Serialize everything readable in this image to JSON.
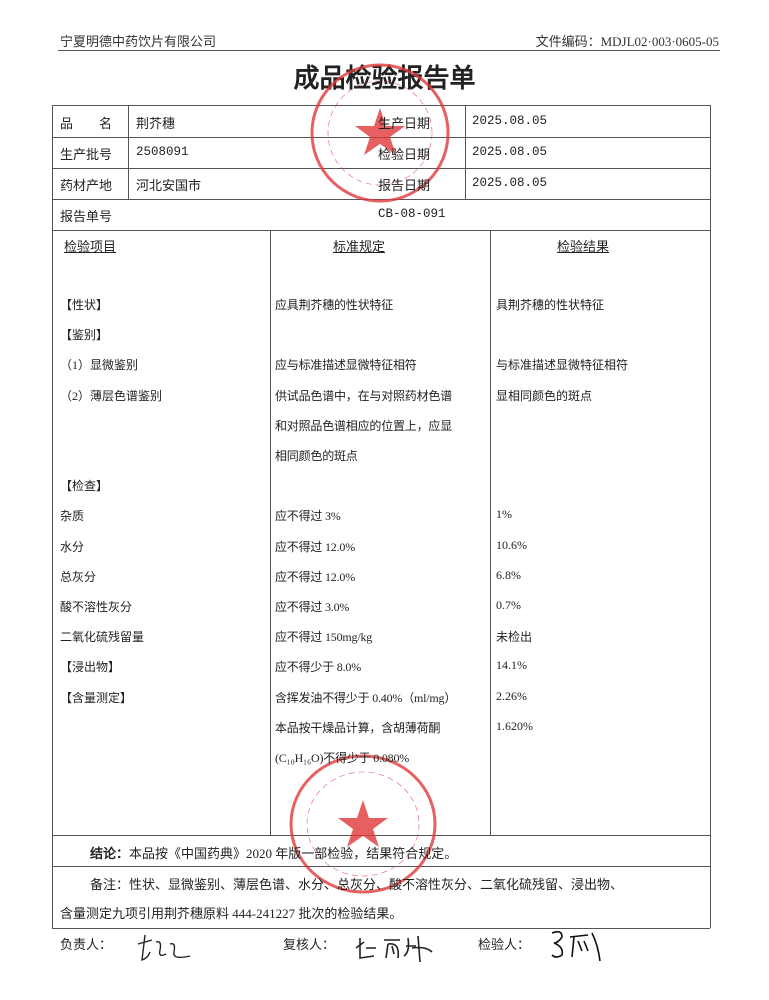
{
  "header": {
    "company": "宁夏明德中药饮片有限公司",
    "doc_code": "文件编码：MDJL02·003·0605-05"
  },
  "title": "成品检验报告单",
  "info": {
    "name_label": "品　　名",
    "name": "荆芥穗",
    "batch_label": "生产批号",
    "batch": "2508091",
    "origin_label": "药材产地",
    "origin": "河北安国市",
    "report_no_label": "报告单号",
    "report_no": "CB-08-091",
    "prod_date_label": "生产日期",
    "prod_date": "2025.08.05",
    "test_date_label": "检验日期",
    "test_date": "2025.08.05",
    "report_date_label": "报告日期",
    "report_date": "2025.08.05"
  },
  "columns": [
    "检验项目",
    "标准规定",
    "检验结果"
  ],
  "rows": [
    {
      "item": "【性状】",
      "standard": "应具荆芥穗的性状特征",
      "result": "具荆芥穗的性状特征"
    },
    {
      "item": "【鉴别】",
      "standard": "",
      "result": ""
    },
    {
      "item": "（1）显微鉴别",
      "standard": "应与标准描述显微特征相符",
      "result": "与标准描述显微特征相符"
    },
    {
      "item": "（2）薄层色谱鉴别",
      "standard": "供试品色谱中，在与对照药材色谱",
      "result": "显相同颜色的斑点"
    },
    {
      "item": "",
      "standard": "和对照品色谱相应的位置上，应显",
      "result": ""
    },
    {
      "item": "",
      "standard": "相同颜色的斑点",
      "result": ""
    },
    {
      "item": "【检查】",
      "standard": "",
      "result": ""
    },
    {
      "item": "杂质",
      "standard": "应不得过 3%",
      "result": "1%"
    },
    {
      "item": "水分",
      "standard": "应不得过 12.0%",
      "result": "10.6%"
    },
    {
      "item": "总灰分",
      "standard": "应不得过 12.0%",
      "result": "6.8%"
    },
    {
      "item": "酸不溶性灰分",
      "standard": "应不得过 3.0%",
      "result": "0.7%"
    },
    {
      "item": "二氧化硫残留量",
      "standard": "应不得过 150mg/kg",
      "result": "未检出"
    },
    {
      "item": "【浸出物】",
      "standard": "应不得少于 8.0%",
      "result": "14.1%"
    },
    {
      "item": "【含量测定】",
      "standard": "含挥发油不得少于 0.40%（ml/mg）",
      "result": "2.26%"
    },
    {
      "item": "",
      "standard": "本品按干燥品计算，含胡薄荷酮",
      "result": "1.620%"
    },
    {
      "item": "",
      "standard": "(C₁₀H₁₆O)不得少于 0.080%",
      "result": ""
    }
  ],
  "conclusion": {
    "label": "结论：",
    "text": "本品按《中国药典》2020 年版一部检验，结果符合规定。"
  },
  "remarks": {
    "label": "备注：",
    "line1": "性状、显微鉴别、薄层色谱、水分、总灰分、酸不溶性灰分、二氧化硫残留、浸出物、",
    "line2": "含量测定九项引用荆芥穗原料 444-241227 批次的检验结果。"
  },
  "signatures": {
    "responsible_label": "负责人：",
    "reviewer_label": "复核人：",
    "inspector_label": "检验人："
  },
  "stamps": {
    "top": "宁夏明德中药饮片有限公司 质量部",
    "bottom": "宁夏明德中药饮片有限公司 质检专用章",
    "color": "#e0393b"
  }
}
